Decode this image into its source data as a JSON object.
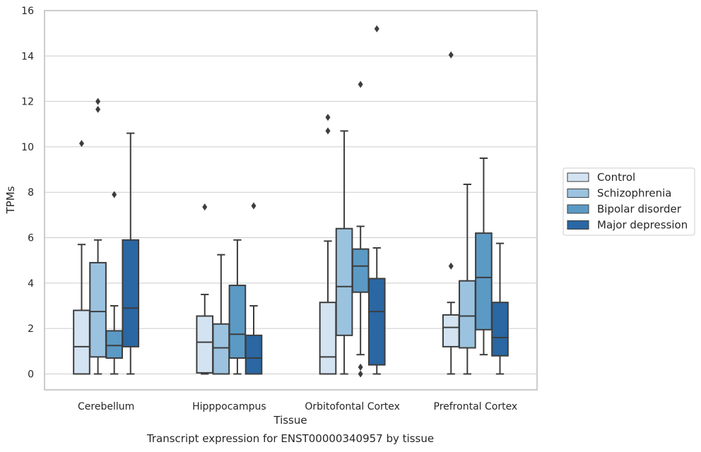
{
  "chart_data": {
    "type": "box",
    "title": "",
    "caption": "Transcript expression for ENST00000340957 by tissue",
    "xlabel": "Tissue",
    "ylabel": "TPMs",
    "ylim": [
      -0.7,
      16
    ],
    "yticks": [
      0,
      2,
      4,
      6,
      8,
      10,
      12,
      14,
      16
    ],
    "grid": "horizontal",
    "legend_position": "right",
    "categories": [
      "Cerebellum",
      "Hipppocampus",
      "Orbitofontal Cortex",
      "Prefrontal Cortex"
    ],
    "series": [
      {
        "name": "Control",
        "color": "#d4e3f2",
        "boxes": [
          {
            "whislo": 0.0,
            "q1": 0.0,
            "med": 1.2,
            "q3": 2.8,
            "whishi": 5.7,
            "fliers": [
              10.15
            ]
          },
          {
            "whislo": 0.0,
            "q1": 0.05,
            "med": 1.4,
            "q3": 2.55,
            "whishi": 3.5,
            "fliers": [
              7.35
            ]
          },
          {
            "whislo": 0.0,
            "q1": 0.0,
            "med": 0.75,
            "q3": 3.15,
            "whishi": 5.85,
            "fliers": [
              10.7,
              11.3
            ]
          },
          {
            "whislo": 0.0,
            "q1": 1.2,
            "med": 2.05,
            "q3": 2.6,
            "whishi": 3.15,
            "fliers": [
              4.75,
              14.05
            ]
          }
        ]
      },
      {
        "name": "Schizophrenia",
        "color": "#9bc3df",
        "boxes": [
          {
            "whislo": 0.0,
            "q1": 0.75,
            "med": 2.75,
            "q3": 4.9,
            "whishi": 5.9,
            "fliers": [
              11.65,
              12.0
            ]
          },
          {
            "whislo": 0.0,
            "q1": 0.0,
            "med": 1.15,
            "q3": 2.2,
            "whishi": 5.25,
            "fliers": []
          },
          {
            "whislo": 0.0,
            "q1": 1.7,
            "med": 3.85,
            "q3": 6.4,
            "whishi": 10.7,
            "fliers": []
          },
          {
            "whislo": 0.0,
            "q1": 1.15,
            "med": 2.55,
            "q3": 4.1,
            "whishi": 8.35,
            "fliers": []
          }
        ]
      },
      {
        "name": "Bipolar disorder",
        "color": "#5b9ac5",
        "boxes": [
          {
            "whislo": 0.0,
            "q1": 0.7,
            "med": 1.25,
            "q3": 1.9,
            "whishi": 3.0,
            "fliers": [
              7.9
            ]
          },
          {
            "whislo": 0.0,
            "q1": 0.7,
            "med": 1.75,
            "q3": 3.9,
            "whishi": 5.9,
            "fliers": []
          },
          {
            "whislo": 0.85,
            "q1": 3.6,
            "med": 4.75,
            "q3": 5.5,
            "whishi": 6.5,
            "fliers": [
              0.0,
              0.3,
              12.75
            ]
          },
          {
            "whislo": 0.85,
            "q1": 1.95,
            "med": 4.25,
            "q3": 6.2,
            "whishi": 9.5,
            "fliers": []
          }
        ]
      },
      {
        "name": "Major depression",
        "color": "#2a67a3",
        "boxes": [
          {
            "whislo": 0.0,
            "q1": 1.2,
            "med": 2.9,
            "q3": 5.9,
            "whishi": 10.6,
            "fliers": []
          },
          {
            "whislo": 0.0,
            "q1": 0.0,
            "med": 0.7,
            "q3": 1.7,
            "whishi": 3.0,
            "fliers": [
              7.4
            ]
          },
          {
            "whislo": 0.0,
            "q1": 0.4,
            "med": 2.75,
            "q3": 4.2,
            "whishi": 5.55,
            "fliers": [
              15.2
            ]
          },
          {
            "whislo": 0.0,
            "q1": 0.8,
            "med": 1.6,
            "q3": 3.15,
            "whishi": 5.75,
            "fliers": []
          }
        ]
      }
    ]
  }
}
